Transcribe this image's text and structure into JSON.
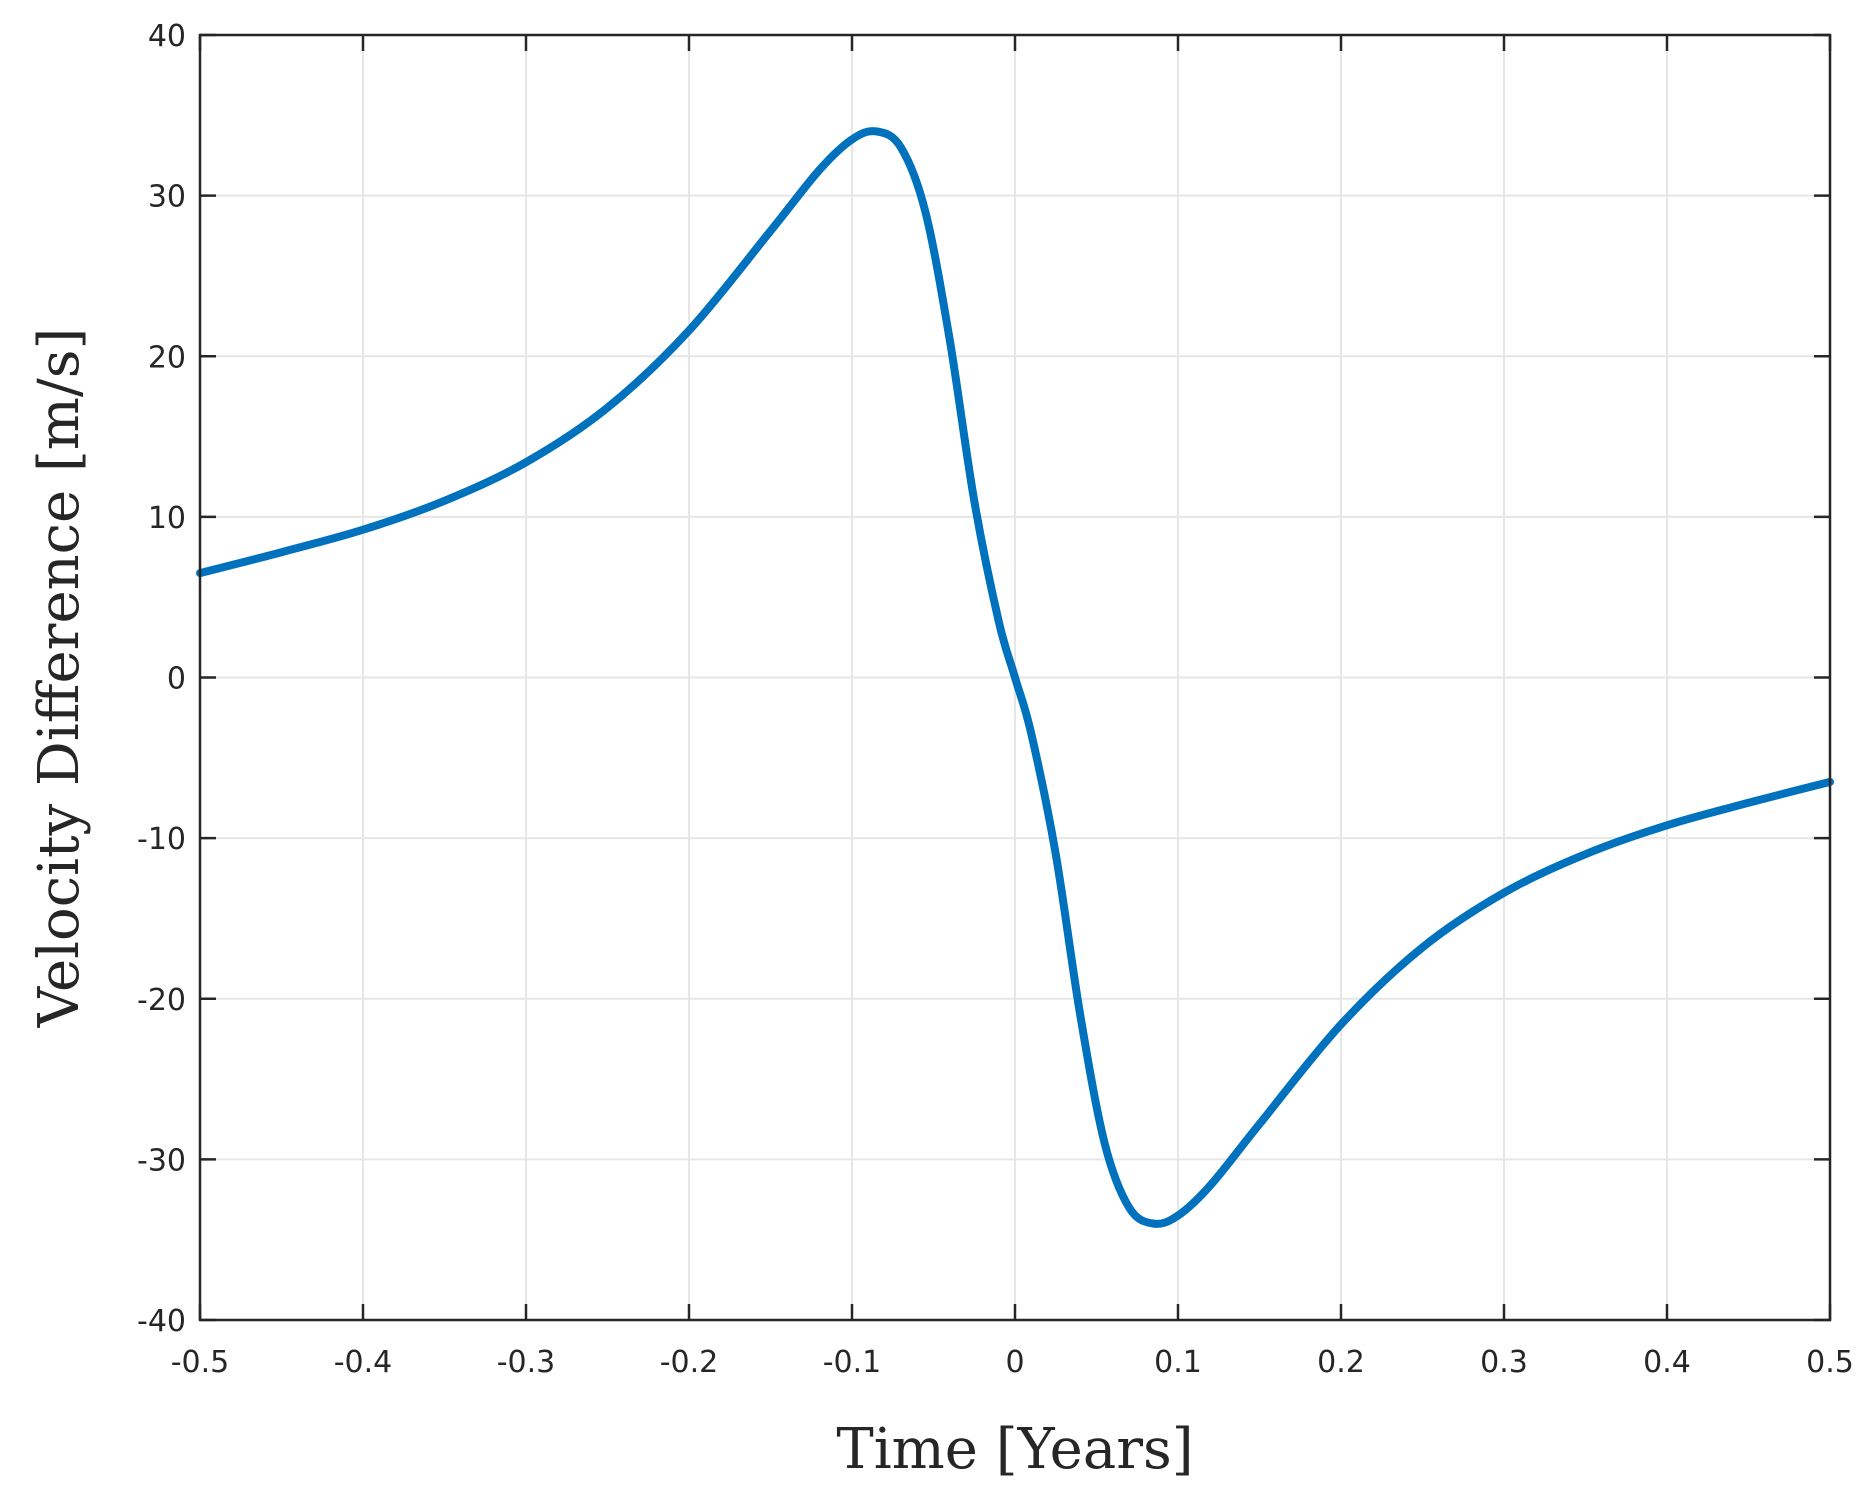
{
  "chart_data": {
    "type": "line",
    "title": "",
    "xlabel": "Time [Years]",
    "ylabel": "Velocity Difference [m/s]",
    "xlim": [
      -0.5,
      0.5
    ],
    "ylim": [
      -40,
      40
    ],
    "xticks": [
      -0.5,
      -0.4,
      -0.3,
      -0.2,
      -0.1,
      0,
      0.1,
      0.2,
      0.3,
      0.4,
      0.5
    ],
    "xtick_labels": [
      "-0.5",
      "-0.4",
      "-0.3",
      "-0.2",
      "-0.1",
      "0",
      "0.1",
      "0.2",
      "0.3",
      "0.4",
      "0.5"
    ],
    "yticks": [
      -40,
      -30,
      -20,
      -10,
      0,
      10,
      20,
      30,
      40
    ],
    "ytick_labels": [
      "-40",
      "-30",
      "-20",
      "-10",
      "0",
      "10",
      "20",
      "30",
      "40"
    ],
    "grid": true,
    "legend": false,
    "series": [
      {
        "color": "#0072BD",
        "x": [
          -0.5,
          -0.45,
          -0.4,
          -0.35,
          -0.3,
          -0.25,
          -0.2,
          -0.15,
          -0.12,
          -0.1,
          -0.085,
          -0.07,
          -0.055,
          -0.04,
          -0.025,
          -0.01,
          0,
          0.01,
          0.025,
          0.04,
          0.055,
          0.07,
          0.085,
          0.1,
          0.12,
          0.15,
          0.2,
          0.25,
          0.3,
          0.35,
          0.4,
          0.45,
          0.5
        ],
        "y": [
          6.5,
          7.8,
          9.2,
          11.0,
          13.4,
          16.8,
          21.6,
          27.8,
          31.6,
          33.5,
          34.0,
          33.0,
          29.0,
          21.0,
          11.0,
          3.5,
          0,
          -3.5,
          -11.0,
          -21.0,
          -29.0,
          -33.0,
          -34.0,
          -33.5,
          -31.6,
          -27.8,
          -21.6,
          -16.8,
          -13.4,
          -11.0,
          -9.2,
          -7.8,
          -6.5
        ]
      }
    ]
  }
}
